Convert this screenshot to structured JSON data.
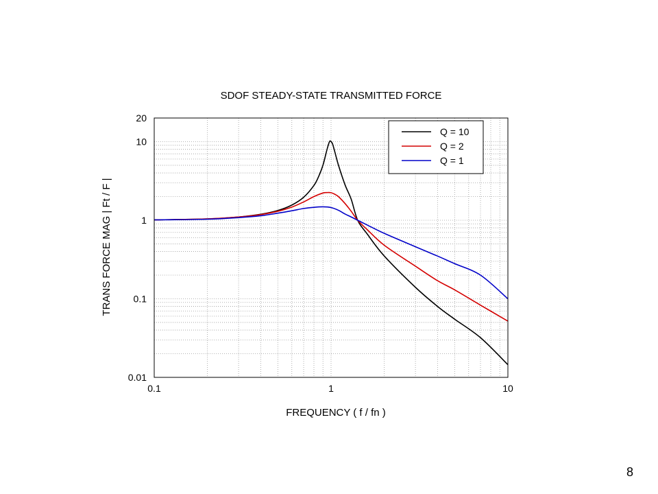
{
  "page": {
    "number": "8"
  },
  "chart_data": {
    "type": "line",
    "title": "SDOF STEADY-STATE   TRANSMITTED FORCE",
    "xlabel": "FREQUENCY  (  f / fn  )",
    "ylabel": "TRANS FORCE MAG   |   Ft / F  |",
    "xscale": "log",
    "yscale": "log",
    "xlim": [
      0.1,
      10
    ],
    "ylim": [
      0.01,
      20
    ],
    "x_ticks": [
      0.1,
      1,
      10
    ],
    "x_tick_labels": [
      "0.1",
      "1",
      "10"
    ],
    "y_ticks": [
      0.01,
      0.1,
      1,
      10,
      20
    ],
    "y_tick_labels": [
      "0.01",
      "0.1",
      "1",
      "10",
      "20"
    ],
    "grid": true,
    "legend_position": "top-right",
    "series": [
      {
        "name": "Q = 10",
        "color": "#000000",
        "x": [
          0.1,
          0.2,
          0.3,
          0.4,
          0.5,
          0.6,
          0.7,
          0.8,
          0.85,
          0.9,
          0.95,
          0.98,
          1.0,
          1.02,
          1.05,
          1.1,
          1.2,
          1.3,
          1.414,
          1.6,
          2,
          3,
          4,
          5,
          7,
          10
        ],
        "y": [
          1.01,
          1.04,
          1.1,
          1.19,
          1.33,
          1.56,
          1.96,
          2.77,
          3.59,
          5.02,
          8.04,
          10.03,
          10.05,
          9.34,
          7.44,
          5.06,
          2.82,
          1.85,
          1.0,
          0.67,
          0.35,
          0.14,
          0.08,
          0.055,
          0.032,
          0.0145
        ]
      },
      {
        "name": "Q = 2",
        "color": "#d40000",
        "x": [
          0.1,
          0.2,
          0.3,
          0.4,
          0.5,
          0.6,
          0.7,
          0.8,
          0.9,
          0.95,
          1.0,
          1.05,
          1.1,
          1.2,
          1.3,
          1.414,
          1.6,
          2,
          3,
          4,
          5,
          7,
          10
        ],
        "y": [
          1.01,
          1.04,
          1.1,
          1.18,
          1.3,
          1.47,
          1.71,
          2.0,
          2.22,
          2.25,
          2.24,
          2.14,
          2.0,
          1.63,
          1.3,
          1.0,
          0.76,
          0.48,
          0.26,
          0.17,
          0.13,
          0.083,
          0.052
        ]
      },
      {
        "name": "Q = 1",
        "color": "#0000c8",
        "x": [
          0.1,
          0.2,
          0.3,
          0.4,
          0.5,
          0.6,
          0.7,
          0.8,
          0.9,
          1.0,
          1.1,
          1.2,
          1.3,
          1.414,
          1.6,
          2,
          3,
          4,
          5,
          7,
          10
        ],
        "y": [
          1.01,
          1.03,
          1.08,
          1.14,
          1.23,
          1.32,
          1.41,
          1.46,
          1.48,
          1.45,
          1.34,
          1.2,
          1.1,
          1.0,
          0.87,
          0.68,
          0.46,
          0.35,
          0.28,
          0.2,
          0.1
        ]
      }
    ]
  }
}
